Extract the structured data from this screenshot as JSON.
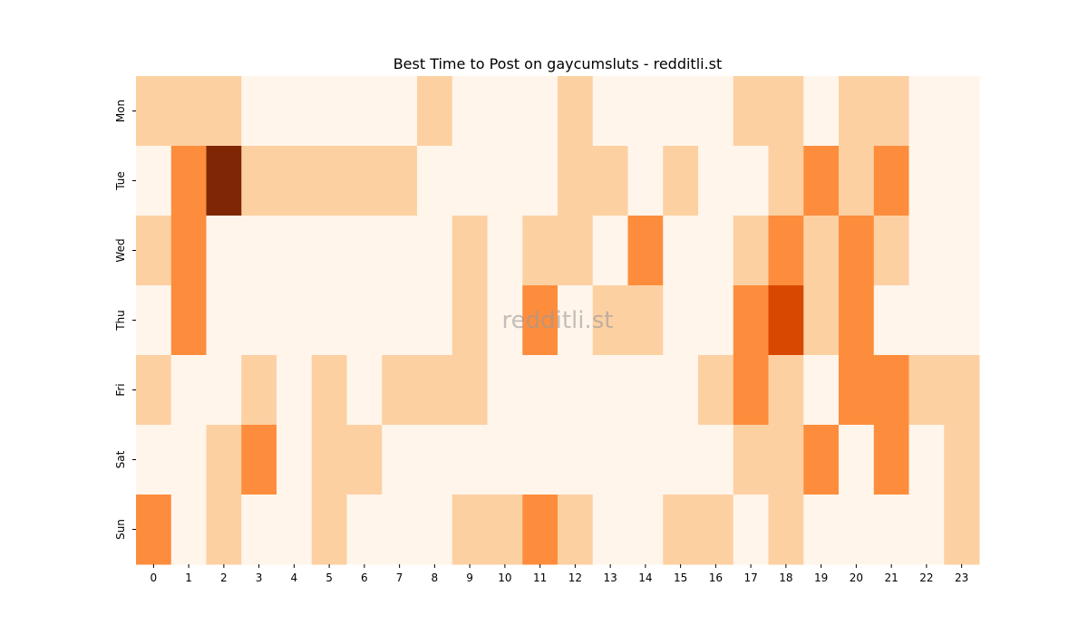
{
  "watermark": "redditli.st",
  "chart_data": {
    "type": "heatmap",
    "title": "Best Time to Post on gaycumsluts - redditli.st",
    "xlabel": "",
    "ylabel": "",
    "x": [
      "0",
      "1",
      "2",
      "3",
      "4",
      "5",
      "6",
      "7",
      "8",
      "9",
      "10",
      "11",
      "12",
      "13",
      "14",
      "15",
      "16",
      "17",
      "18",
      "19",
      "20",
      "21",
      "22",
      "23"
    ],
    "y": [
      "Mon",
      "Tue",
      "Wed",
      "Thu",
      "Fri",
      "Sat",
      "Sun"
    ],
    "values": [
      [
        1,
        1,
        1,
        0,
        0,
        0,
        0,
        0,
        1,
        0,
        0,
        0,
        1,
        0,
        0,
        0,
        0,
        1,
        1,
        0,
        1,
        1,
        0,
        0
      ],
      [
        0,
        2,
        4,
        1,
        1,
        1,
        1,
        1,
        0,
        0,
        0,
        0,
        1,
        1,
        0,
        1,
        0,
        0,
        1,
        2,
        1,
        2,
        0,
        0
      ],
      [
        1,
        2,
        0,
        0,
        0,
        0,
        0,
        0,
        0,
        1,
        0,
        1,
        1,
        0,
        2,
        0,
        0,
        1,
        2,
        1,
        2,
        1,
        0,
        0
      ],
      [
        0,
        2,
        0,
        0,
        0,
        0,
        0,
        0,
        0,
        1,
        0,
        2,
        0,
        1,
        1,
        0,
        0,
        2,
        3,
        1,
        2,
        0,
        0,
        0
      ],
      [
        1,
        0,
        0,
        1,
        0,
        1,
        0,
        1,
        1,
        1,
        0,
        0,
        0,
        0,
        0,
        0,
        1,
        2,
        1,
        0,
        2,
        2,
        1,
        1
      ],
      [
        0,
        0,
        1,
        2,
        0,
        1,
        1,
        0,
        0,
        0,
        0,
        0,
        0,
        0,
        0,
        0,
        0,
        1,
        1,
        2,
        0,
        2,
        0,
        1
      ],
      [
        2,
        0,
        1,
        0,
        0,
        1,
        0,
        0,
        0,
        1,
        1,
        2,
        1,
        0,
        0,
        1,
        1,
        0,
        1,
        0,
        0,
        0,
        0,
        1
      ]
    ],
    "colormap": "Oranges",
    "level_colors": [
      "#fff5eb",
      "#fdd0a2",
      "#fd8d3c",
      "#d94801",
      "#7f2704"
    ],
    "legend": "none",
    "grid": false
  }
}
